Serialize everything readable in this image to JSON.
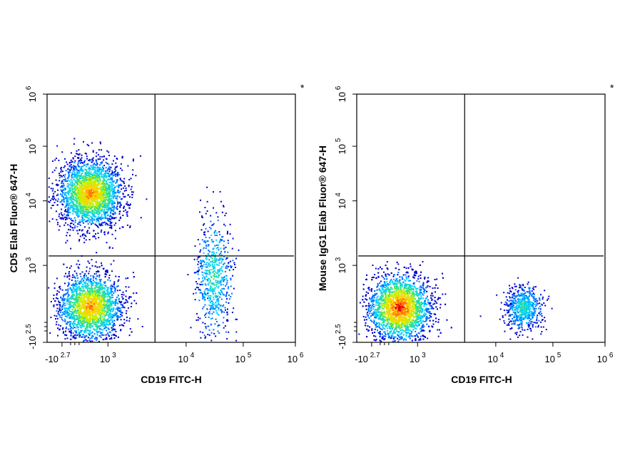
{
  "chart_data": [
    {
      "type": "scatter",
      "subtype": "flow-cytometry-density-dot-plot",
      "marker_text": "*",
      "xlabel": "CD19 FITC-H",
      "ylabel": "CD5 Elab Fluor® 647-H",
      "x_scale": "biexponential",
      "y_scale": "biexponential",
      "x_tick_labels": [
        {
          "base": "-10",
          "exp": "2.7"
        },
        {
          "base": "10",
          "exp": "3"
        },
        {
          "base": "10",
          "exp": "4"
        },
        {
          "base": "10",
          "exp": "5"
        },
        {
          "base": "10",
          "exp": "6"
        }
      ],
      "y_tick_labels": [
        {
          "base": "-10",
          "exp": "2.5"
        },
        {
          "base": "10",
          "exp": "3"
        },
        {
          "base": "10",
          "exp": "4"
        },
        {
          "base": "10",
          "exp": "5"
        },
        {
          "base": "10",
          "exp": "6"
        }
      ],
      "quadrant_gate": {
        "x": 4000,
        "y": 1400
      },
      "populations": [
        {
          "x_center": 420,
          "y_center": 14000,
          "spread": "large",
          "density": "high",
          "quadrant": "upper-left"
        },
        {
          "x_center": 420,
          "y_center": 220,
          "spread": "large",
          "density": "high",
          "quadrant": "lower-left"
        },
        {
          "x_center": 30000,
          "y_center": 800,
          "spread": "medium",
          "density": "low",
          "quadrant": "lower-right / upper-right"
        }
      ],
      "colormap": [
        "#0000cc",
        "#0070ff",
        "#00d0ff",
        "#30e090",
        "#c8f000",
        "#ffd000",
        "#ff7000",
        "#e00000"
      ],
      "grid": false,
      "legend": "none"
    },
    {
      "type": "scatter",
      "subtype": "flow-cytometry-density-dot-plot",
      "marker_text": "*",
      "xlabel": "CD19 FITC-H",
      "ylabel": "Mouse IgG1 Elab Fluor® 647-H",
      "x_scale": "biexponential",
      "y_scale": "biexponential",
      "x_tick_labels": [
        {
          "base": "-10",
          "exp": "2.7"
        },
        {
          "base": "10",
          "exp": "3"
        },
        {
          "base": "10",
          "exp": "4"
        },
        {
          "base": "10",
          "exp": "5"
        },
        {
          "base": "10",
          "exp": "6"
        }
      ],
      "y_tick_labels": [
        {
          "base": "-10",
          "exp": "2.5"
        },
        {
          "base": "10",
          "exp": "3"
        },
        {
          "base": "10",
          "exp": "4"
        },
        {
          "base": "10",
          "exp": "5"
        },
        {
          "base": "10",
          "exp": "6"
        }
      ],
      "quadrant_gate": {
        "x": 4000,
        "y": 1400
      },
      "populations": [
        {
          "x_center": 400,
          "y_center": 200,
          "spread": "large",
          "density": "very high",
          "quadrant": "lower-left"
        },
        {
          "x_center": 30000,
          "y_center": 200,
          "spread": "medium",
          "density": "low",
          "quadrant": "lower-right"
        }
      ],
      "colormap": [
        "#0000cc",
        "#0070ff",
        "#00d0ff",
        "#30e090",
        "#c8f000",
        "#ffd000",
        "#ff7000",
        "#e00000"
      ],
      "grid": false,
      "legend": "none"
    }
  ]
}
